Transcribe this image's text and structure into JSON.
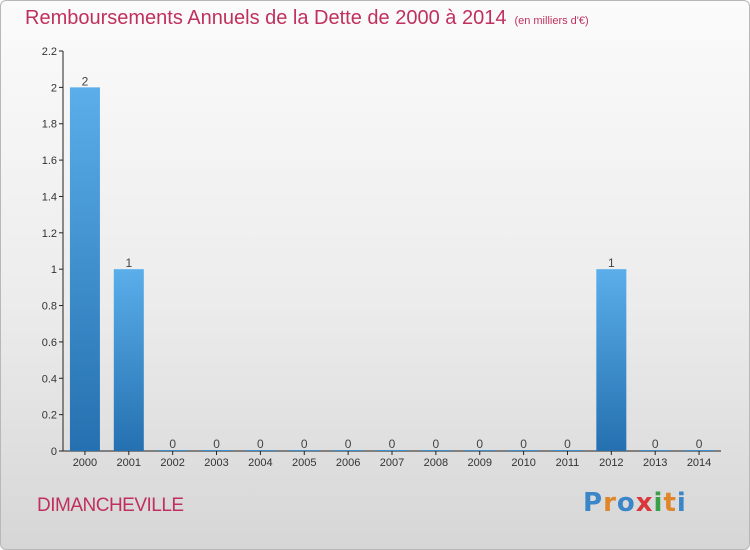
{
  "title": "Remboursements Annuels de la Dette de 2000 à 2014",
  "subtitle": "(en milliers d'€)",
  "commune": "DIMANCHEVILLE",
  "logo": {
    "letters": [
      "P",
      "r",
      "o",
      "x",
      "i",
      "t",
      "i"
    ],
    "colors": [
      "#3a86c8",
      "#e0862a",
      "#3a86c8",
      "#d8383a",
      "#3aa048",
      "#e0862a",
      "#3a86c8"
    ]
  },
  "colors": {
    "bar_light": "#5aaeea",
    "bar_dark": "#2570b0",
    "accent": "#c0305e"
  },
  "chart_data": {
    "type": "bar",
    "categories": [
      "2000",
      "2001",
      "2002",
      "2003",
      "2004",
      "2005",
      "2006",
      "2007",
      "2008",
      "2009",
      "2010",
      "2011",
      "2012",
      "2013",
      "2014"
    ],
    "values": [
      2,
      1,
      0,
      0,
      0,
      0,
      0,
      0,
      0,
      0,
      0,
      0,
      1,
      0,
      0
    ],
    "value_labels": [
      "2",
      "1",
      "0",
      "0",
      "0",
      "0",
      "0",
      "0",
      "0",
      "0",
      "0",
      "0",
      "1",
      "0",
      "0"
    ],
    "yticks": [
      0,
      0.2,
      0.4,
      0.6,
      0.8,
      1,
      1.2,
      1.4,
      1.6,
      1.8,
      2,
      2.2
    ],
    "ytick_labels": [
      "0",
      "0.2",
      "0.4",
      "0.6",
      "0.8",
      "1",
      "1.2",
      "1.4",
      "1.6",
      "1.8",
      "2",
      "2.2"
    ],
    "ylim": [
      0,
      2.2
    ],
    "grid": false,
    "legend": false
  }
}
